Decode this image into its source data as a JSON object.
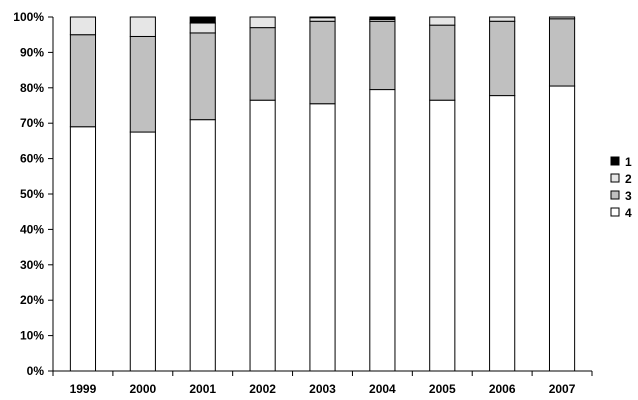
{
  "chart_data": {
    "type": "bar",
    "stacked": true,
    "percent_stacked": true,
    "categories": [
      "1999",
      "2000",
      "2001",
      "2002",
      "2003",
      "2004",
      "2005",
      "2006",
      "2007"
    ],
    "series": [
      {
        "name": "4",
        "color": "#ffffff",
        "values": [
          69,
          67.5,
          71,
          76.5,
          75.5,
          79.5,
          76.5,
          77.8,
          80.5
        ]
      },
      {
        "name": "3",
        "color": "#c0c0c0",
        "values": [
          26,
          27,
          24.5,
          20.5,
          23.3,
          19.3,
          21.2,
          21,
          19
        ]
      },
      {
        "name": "2",
        "color": "#e6e6e6",
        "values": [
          5,
          5.5,
          2.8,
          3,
          1,
          0.5,
          2.3,
          1.2,
          0.5
        ]
      },
      {
        "name": "1",
        "color": "#000000",
        "values": [
          0,
          0,
          1.7,
          0,
          0.2,
          0.7,
          0,
          0,
          0
        ]
      }
    ],
    "ylim": [
      0,
      100
    ],
    "yticks": [
      "0%",
      "10%",
      "20%",
      "30%",
      "40%",
      "50%",
      "60%",
      "70%",
      "80%",
      "90%",
      "100%"
    ],
    "xlabel": "",
    "ylabel": "",
    "title": "",
    "grid": false,
    "legend_position": "right",
    "legend_order": [
      "1",
      "2",
      "3",
      "4"
    ]
  }
}
